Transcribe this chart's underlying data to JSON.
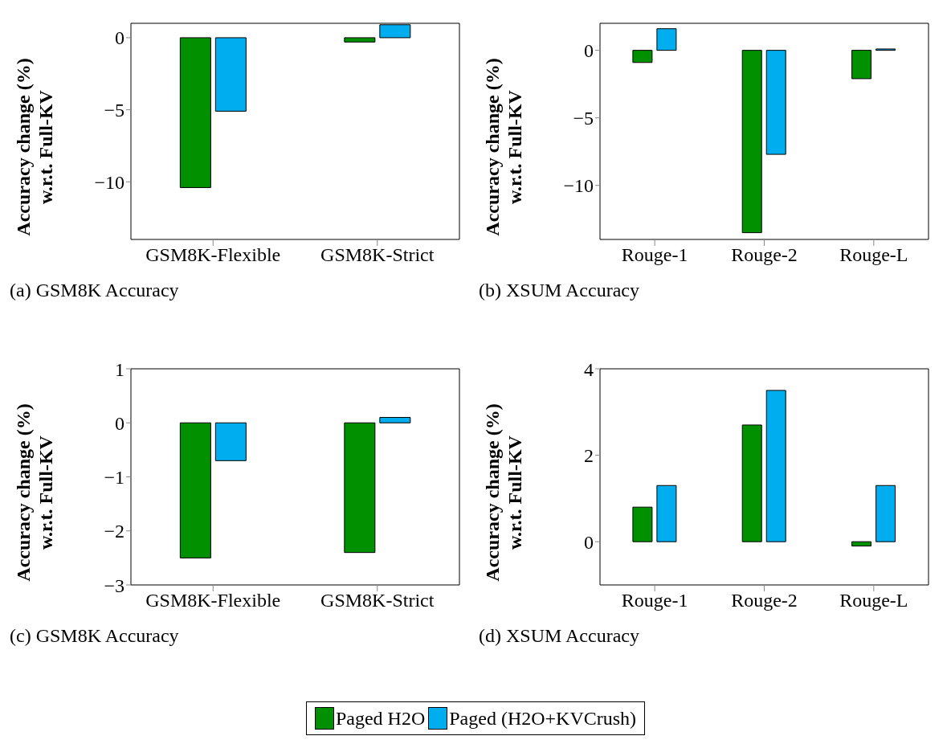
{
  "chart_data": [
    {
      "type": "bar",
      "ylabel": "Accuracy change (%) w.r.t. Full-KV",
      "categories": [
        "GSM8K-Flexible",
        "GSM8K-Strict"
      ],
      "ylim": [
        -14,
        1
      ],
      "yticks": [
        -10,
        -5,
        0
      ],
      "annotations": [
        "(a) GSM8K Accuracy"
      ],
      "legend": "bottom",
      "series": [
        {
          "name": "Paged H2O",
          "color": "#009000",
          "values": [
            -10.4,
            -0.3
          ]
        },
        {
          "name": "Paged (H2O+KVCrush)",
          "color": "#00aeef",
          "values": [
            -5.1,
            0.9
          ]
        }
      ]
    },
    {
      "type": "bar",
      "ylabel": "Accuracy change (%) w.r.t. Full-KV",
      "categories": [
        "Rouge-1",
        "Rouge-2",
        "Rouge-L"
      ],
      "ylim": [
        -14,
        2
      ],
      "yticks": [
        -10,
        -5,
        0
      ],
      "annotations": [
        "(b) XSUM Accuracy"
      ],
      "series": [
        {
          "color": "#009000",
          "values": [
            -0.9,
            -13.5,
            -2.1
          ]
        },
        {
          "color": "#00aeef",
          "values": [
            1.6,
            -7.7,
            0.1
          ]
        }
      ]
    },
    {
      "type": "bar",
      "ylabel": "Accuracy change (%) w.r.t. Full-KV",
      "categories": [
        "GSM8K-Flexible",
        "GSM8K-Strict"
      ],
      "ylim": [
        -3,
        1
      ],
      "yticks": [
        -3,
        -2,
        -1,
        0,
        1
      ],
      "annotations": [
        "(c) GSM8K Accuracy"
      ],
      "series": [
        {
          "color": "#009000",
          "values": [
            -2.5,
            -2.4
          ]
        },
        {
          "color": "#00aeef",
          "values": [
            -0.7,
            0.1
          ]
        }
      ]
    },
    {
      "type": "bar",
      "ylabel": "Accuracy change (%) w.r.t. Full-KV",
      "categories": [
        "Rouge-1",
        "Rouge-2",
        "Rouge-L"
      ],
      "ylim": [
        -1,
        4
      ],
      "yticks": [
        0,
        2,
        4
      ],
      "annotations": [
        "(d) XSUM Accuracy"
      ],
      "series": [
        {
          "color": "#009000",
          "values": [
            0.8,
            2.7,
            -0.1
          ]
        },
        {
          "color": "#00aeef",
          "values": [
            1.3,
            3.5,
            1.3
          ]
        }
      ]
    }
  ]
}
